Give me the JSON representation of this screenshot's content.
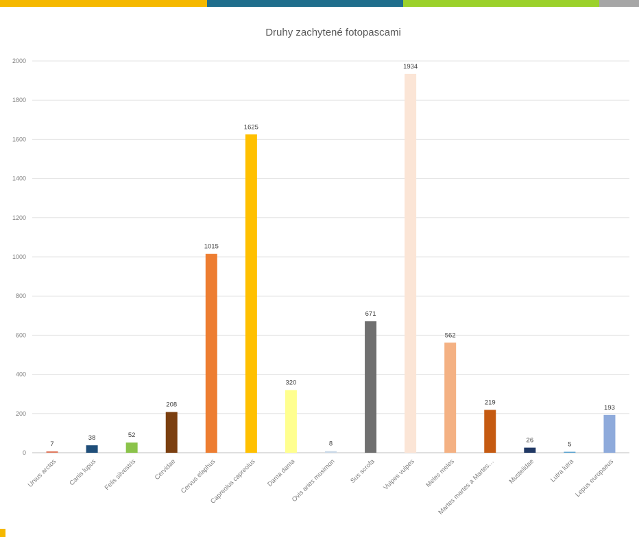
{
  "decor": {
    "top_bar_colors": [
      "#f5b800",
      "#1f6e8c",
      "#9bd12a",
      "#a6a6a6"
    ],
    "side_mark_color": "#f5b800"
  },
  "chart_data": {
    "type": "bar",
    "title": "Druhy zachytené fotopascami",
    "xlabel": "",
    "ylabel": "",
    "ylim": [
      0,
      2000
    ],
    "ytick_step": 200,
    "grid": true,
    "categories": [
      "Ursus arctos",
      "Canis lupus",
      "Felis silvestris",
      "Cervidae",
      "Cervus elaphus",
      "Capreolus capreolus",
      "Dama dama",
      "Ovis aries musimon",
      "Sus scrofa",
      "Vulpes vulpes",
      "Meles meles",
      "Martes martes a Martes…",
      "Mustelidae",
      "Lutra lutra",
      "Lepus europaeus"
    ],
    "values": [
      7,
      38,
      52,
      208,
      1015,
      1625,
      320,
      8,
      671,
      1934,
      562,
      219,
      26,
      5,
      193
    ],
    "colors": [
      "#e07a5f",
      "#1f4e79",
      "#8bc34a",
      "#7b3f10",
      "#ed7d31",
      "#ffc000",
      "#ffff8f",
      "#c9d9e8",
      "#707070",
      "#fbe5d6",
      "#f4b183",
      "#c55a11",
      "#203864",
      "#5ba3d0",
      "#8eaadb"
    ]
  }
}
